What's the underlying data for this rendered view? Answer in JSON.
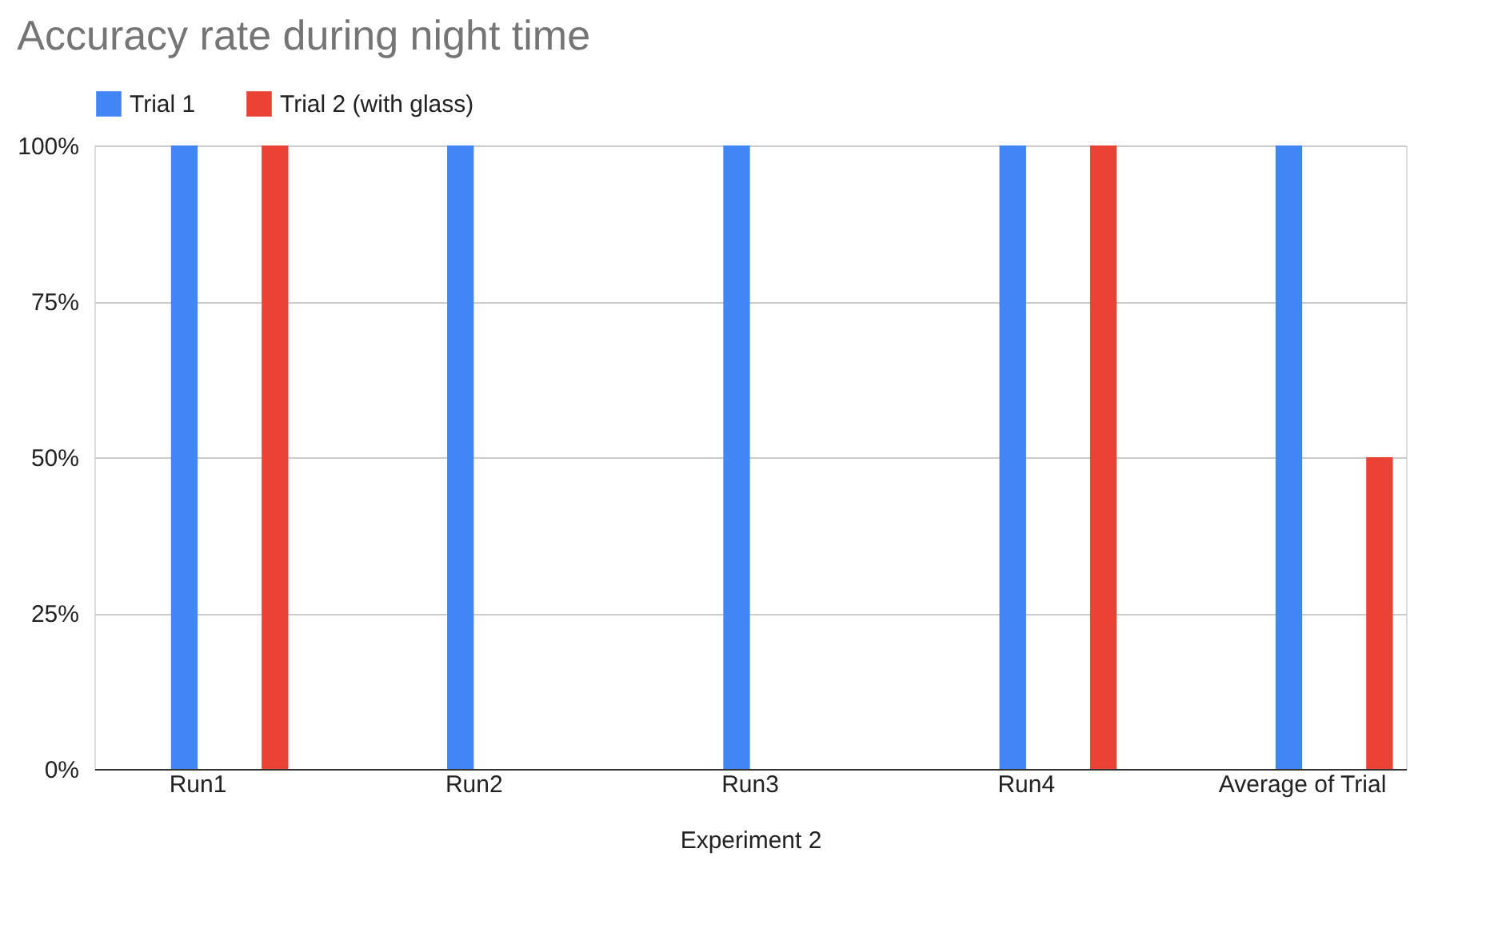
{
  "chart_data": {
    "type": "bar",
    "title": "Accuracy rate during night time",
    "xlabel": "Experiment 2",
    "categories": [
      "Run1",
      "Run2",
      "Run3",
      "Run4",
      "Average of Trial"
    ],
    "series": [
      {
        "name": "Trial 1",
        "color": "#4285f4",
        "values": [
          100,
          100,
          100,
          100,
          100
        ]
      },
      {
        "name": "Trial 2 (with glass)",
        "color": "#ea4335",
        "values": [
          100,
          0,
          0,
          100,
          50
        ]
      }
    ],
    "ylim": [
      0,
      100
    ],
    "yticks": [
      {
        "value": 0,
        "label": "0%"
      },
      {
        "value": 25,
        "label": "25%"
      },
      {
        "value": 50,
        "label": "50%"
      },
      {
        "value": 75,
        "label": "75%"
      },
      {
        "value": 100,
        "label": "100%"
      }
    ],
    "grid": "y",
    "legend": "top"
  }
}
